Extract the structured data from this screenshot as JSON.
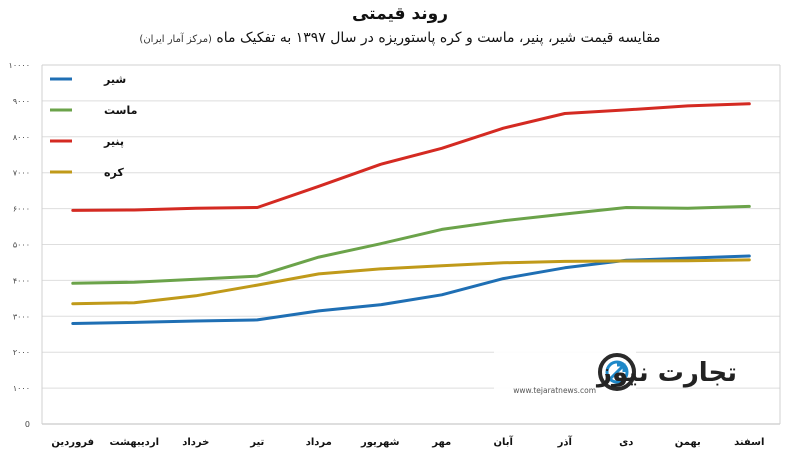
{
  "header": {
    "title": "روند قیمتی",
    "subtitle": "مقایسه قیمت شیر، پنیر، ماست و کره پاستوریزه در سال ۱۳۹۷ به تفکیک ماه",
    "source_note": "(مرکز آمار ایران)"
  },
  "watermark": {
    "brand": "تجارت نیوز",
    "url": "www.tejaratnews.com"
  },
  "chart_data": {
    "type": "line",
    "title": "روند قیمتی",
    "subtitle": "مقایسه قیمت شیر، پنیر، ماست و کره پاستوریزه در سال ۱۳۹۷ به تفکیک ماه (مرکز آمار ایران)",
    "xlabel": "",
    "ylabel": "",
    "ylim": [
      0,
      10000
    ],
    "y_ticks": [
      0,
      1000,
      2000,
      3000,
      4000,
      5000,
      6000,
      7000,
      8000,
      9000,
      10000
    ],
    "y_tick_labels": [
      "0",
      "۱۰۰۰",
      "۲۰۰۰",
      "۳۰۰۰",
      "۴۰۰۰",
      "۵۰۰۰",
      "۶۰۰۰",
      "۷۰۰۰",
      "۸۰۰۰",
      "۹۰۰۰",
      "۱۰۰۰۰"
    ],
    "grid": true,
    "legend_position": "top-left",
    "categories": [
      "فروردین",
      "اردیبهشت",
      "خرداد",
      "تیر",
      "مرداد",
      "شهریور",
      "مهر",
      "آبان",
      "آذر",
      "دی",
      "بهمن",
      "اسفند"
    ],
    "series": [
      {
        "name": "شیر",
        "color": "#1f6fb4",
        "values": [
          2800,
          2830,
          2870,
          2900,
          3150,
          3320,
          3600,
          4050,
          4350,
          4560,
          4620,
          4680
        ]
      },
      {
        "name": "ماست",
        "color": "#6ba34a",
        "values": [
          3920,
          3950,
          4030,
          4120,
          4650,
          5020,
          5420,
          5660,
          5850,
          6030,
          6010,
          6060
        ]
      },
      {
        "name": "پنیر",
        "color": "#d42a22",
        "values": [
          5950,
          5960,
          6010,
          6030,
          6620,
          7230,
          7680,
          8240,
          8650,
          8750,
          8860,
          8920
        ]
      },
      {
        "name": "کره",
        "color": "#c09a1a",
        "values": [
          3350,
          3380,
          3570,
          3870,
          4180,
          4320,
          4410,
          4490,
          4530,
          4540,
          4550,
          4570
        ]
      }
    ]
  }
}
